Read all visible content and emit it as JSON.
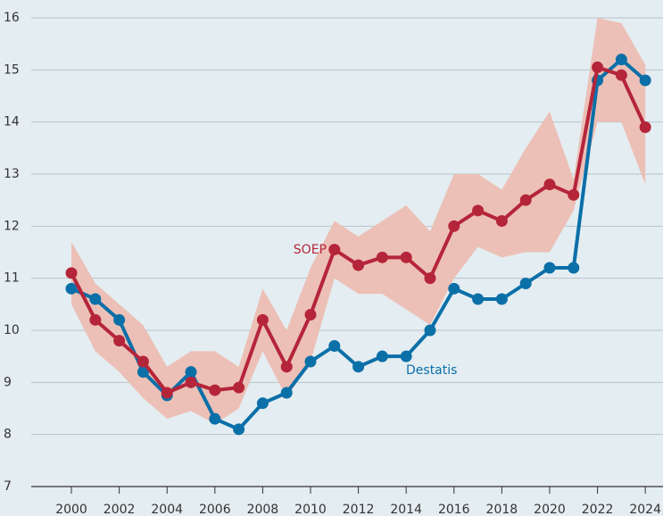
{
  "chart_data": {
    "type": "line",
    "x": [
      2000,
      2001,
      2002,
      2003,
      2004,
      2005,
      2006,
      2007,
      2008,
      2009,
      2010,
      2011,
      2012,
      2013,
      2014,
      2015,
      2016,
      2017,
      2018,
      2019,
      2020,
      2021,
      2022,
      2023,
      2024
    ],
    "xlim": [
      1998.32,
      2024.74
    ],
    "xticks": [
      2000,
      2002,
      2004,
      2006,
      2008,
      2010,
      2012,
      2014,
      2016,
      2018,
      2020,
      2022,
      2024
    ],
    "ylim": [
      7,
      16
    ],
    "yticks": [
      7,
      8,
      9,
      10,
      11,
      12,
      13,
      14,
      15,
      16
    ],
    "grid": true,
    "series": [
      {
        "name": "Destatis",
        "color": "#0b6fa8",
        "values": [
          10.8,
          10.6,
          10.2,
          9.2,
          8.75,
          9.2,
          8.3,
          8.1,
          8.6,
          8.8,
          9.4,
          9.7,
          9.3,
          9.5,
          9.5,
          10.0,
          10.8,
          10.6,
          10.6,
          10.9,
          11.2,
          11.2,
          14.8,
          15.2,
          14.8
        ]
      },
      {
        "name": "SOEP",
        "color": "#b5253a",
        "band_color": "#ecc0b6",
        "values": [
          11.1,
          10.2,
          9.8,
          9.4,
          8.8,
          9.0,
          8.85,
          8.9,
          10.2,
          9.3,
          10.3,
          11.55,
          11.25,
          11.4,
          11.4,
          11.0,
          12.0,
          12.3,
          12.1,
          12.5,
          12.8,
          12.6,
          15.05,
          14.9,
          13.9
        ],
        "upper": [
          11.7,
          10.9,
          10.5,
          10.1,
          9.3,
          9.6,
          9.6,
          9.3,
          10.8,
          10.0,
          11.2,
          12.1,
          11.8,
          12.1,
          12.4,
          11.9,
          13.0,
          13.0,
          12.7,
          13.5,
          14.2,
          12.9,
          16.0,
          15.9,
          15.1
        ],
        "lower": [
          10.5,
          9.6,
          9.2,
          8.7,
          8.3,
          8.45,
          8.2,
          8.5,
          9.6,
          8.7,
          9.4,
          11.0,
          10.7,
          10.7,
          10.4,
          10.1,
          11.0,
          11.6,
          11.4,
          11.5,
          11.5,
          12.3,
          14.0,
          14.0,
          12.8
        ]
      }
    ]
  }
}
